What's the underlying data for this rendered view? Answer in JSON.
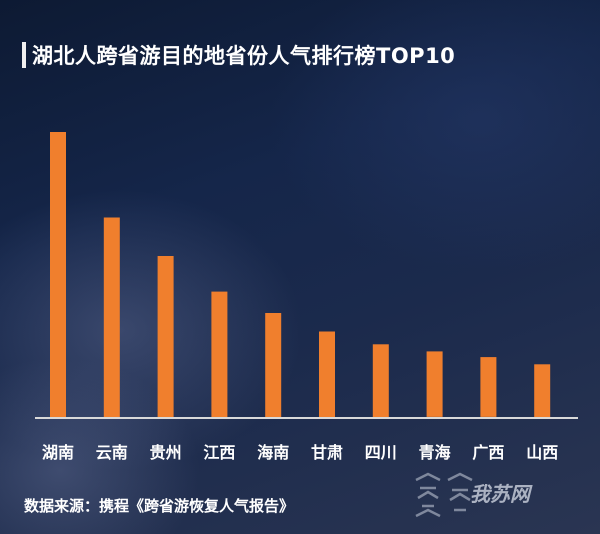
{
  "header": {
    "title": "湖北人跨省游目的地省份人气排行榜TOP10"
  },
  "chart_data": {
    "type": "bar",
    "title": "湖北人跨省游目的地省份人气排行榜TOP10",
    "xlabel": "",
    "ylabel": "",
    "categories": [
      "湖南",
      "云南",
      "贵州",
      "江西",
      "海南",
      "甘肃",
      "四川",
      "青海",
      "广西",
      "山西"
    ],
    "values": [
      100,
      70,
      56.5,
      44,
      36.5,
      30,
      25.5,
      23,
      21,
      18.5
    ],
    "ylim": [
      0,
      100
    ],
    "grid": false,
    "bar_color": "#f07f2d",
    "axis_color": "#d9d9d9"
  },
  "footer": {
    "source": "数据来源：携程《跨省游恢复人气报告》",
    "watermark": "我苏网"
  },
  "icons": {
    "watermark_logo": "wosu-logo-icon"
  }
}
